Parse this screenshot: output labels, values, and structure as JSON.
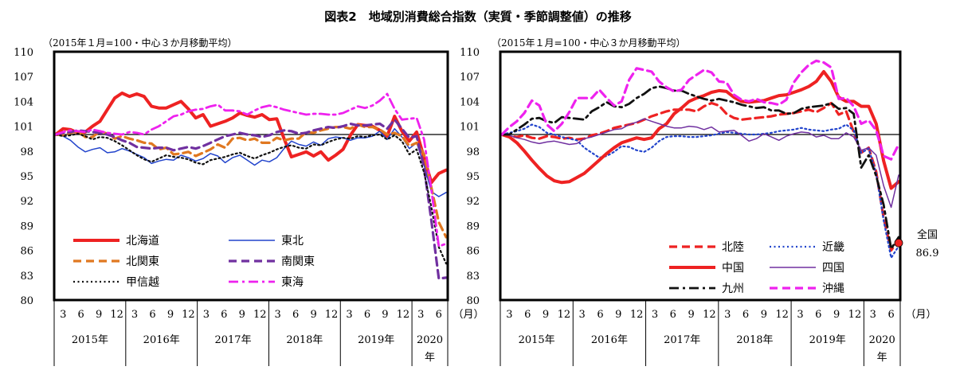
{
  "title": "図表2　地域別消費総合指数（実質・季節調整値）の推移",
  "chart_data": [
    {
      "type": "line",
      "unit_note": "（2015年１月=100・中心３か月移動平均）",
      "ylim": [
        80,
        110
      ],
      "yticks": [
        "110",
        "107",
        "104",
        "101",
        "98",
        "95",
        "92",
        "89",
        "86",
        "83",
        "80"
      ],
      "month_ticks": [
        "3",
        "6",
        "9",
        "12",
        "3",
        "6",
        "9",
        "12",
        "3",
        "6",
        "9",
        "12",
        "3",
        "6",
        "9",
        "12",
        "3",
        "6",
        "9",
        "12",
        "3",
        "6"
      ],
      "year_labels": [
        "2015年",
        "2016年",
        "2017年",
        "2018年",
        "2019年",
        "2020年"
      ],
      "x_unit": "（月）",
      "reference_line": 100,
      "legend_placement": "bottom-left",
      "series": [
        {
          "name": "北海道",
          "color": "#ee2222",
          "style": "solid-thick",
          "values": [
            100,
            100.7,
            100.6,
            100.2,
            100.3,
            101,
            101.6,
            103,
            104.4,
            105,
            104.6,
            104.9,
            104.6,
            103.4,
            103.2,
            103.2,
            103.6,
            104,
            103.1,
            102,
            102.4,
            101,
            101.3,
            101.6,
            102,
            102.6,
            102.3,
            102.1,
            102.4,
            101.8,
            101.9,
            99.5,
            97.3,
            97.6,
            97.9,
            97.4,
            97.9,
            96.9,
            97.5,
            98.2,
            99.9,
            101.2,
            101.1,
            101,
            100.5,
            99.8,
            102.2,
            100.4,
            99.2,
            100.3,
            97.2,
            94.2,
            95.3,
            95.7
          ]
        },
        {
          "name": "東北",
          "color": "#2244cc",
          "style": "solid-thin",
          "values": [
            100,
            99.8,
            99.3,
            98.5,
            97.9,
            98.2,
            98.4,
            97.8,
            97.9,
            98.3,
            98,
            97.6,
            97.2,
            96.5,
            96.8,
            97,
            96.9,
            97.5,
            97.2,
            96.8,
            97.1,
            97.7,
            97.4,
            96.6,
            97.2,
            97.5,
            96.9,
            96.3,
            96.9,
            96.7,
            97.2,
            98.3,
            99.2,
            98.8,
            98.6,
            99.1,
            98.7,
            99.5,
            99.7,
            99.6,
            99.3,
            99.6,
            99.6,
            99.8,
            100.4,
            99.4,
            100.7,
            99.7,
            98.3,
            99,
            96.3,
            93.1,
            92.5,
            93
          ]
        },
        {
          "name": "北関東",
          "color": "#e07820",
          "style": "dash-thick",
          "values": [
            100,
            99.9,
            100.2,
            100.4,
            99.7,
            99.7,
            100.4,
            100.1,
            99.5,
            99.8,
            99.5,
            99.3,
            99,
            98.9,
            98.2,
            98.4,
            97.6,
            97.7,
            97.9,
            97.4,
            97.8,
            98.2,
            98.8,
            98.4,
            99.5,
            99.6,
            99.3,
            99.5,
            99,
            99,
            99.6,
            99.3,
            99.5,
            99.5,
            100.3,
            100.2,
            100.5,
            100.7,
            100.9,
            100.9,
            100.7,
            101.2,
            100.9,
            100.9,
            100.6,
            100,
            100.2,
            99.8,
            98.6,
            99,
            97.6,
            93.6,
            89.4,
            87.6
          ]
        },
        {
          "name": "南関東",
          "color": "#7030a0",
          "style": "dash-thick",
          "values": [
            100,
            100.2,
            100.3,
            100.5,
            100.4,
            100.3,
            100.2,
            100,
            99.7,
            99.3,
            99,
            98.5,
            98.4,
            98.3,
            98.4,
            98.4,
            98.1,
            98.3,
            98.5,
            98.3,
            98.6,
            99,
            99.4,
            99.8,
            100,
            100.2,
            100,
            99.9,
            99.7,
            99.9,
            100.3,
            100.5,
            100.4,
            100.1,
            100.2,
            100.5,
            100.7,
            100.9,
            100.8,
            101,
            101.3,
            101.1,
            101.1,
            101.2,
            101.3,
            100.7,
            101.8,
            100.7,
            99.6,
            99.8,
            96,
            89.6,
            82.6,
            82.7
          ]
        },
        {
          "name": "甲信越",
          "color": "#111111",
          "style": "dot",
          "values": [
            100,
            99.8,
            99.9,
            100.1,
            99.8,
            99.4,
            99.7,
            99.6,
            99.2,
            98.7,
            98.1,
            97.5,
            97,
            96.7,
            97.1,
            97.5,
            97.3,
            97.2,
            97,
            96.6,
            96.4,
            96.9,
            97.1,
            97.3,
            97.6,
            97.8,
            97.4,
            97.1,
            97.5,
            97.8,
            98.2,
            98.5,
            98.7,
            98.4,
            98.3,
            98.8,
            98.7,
            99.1,
            99.4,
            99.6,
            99.5,
            99.8,
            99.7,
            99.9,
            100,
            99.4,
            99.9,
            99.2,
            97.6,
            98.2,
            95.4,
            91.2,
            86.4,
            84.4
          ]
        },
        {
          "name": "東海",
          "color": "#ee22ee",
          "style": "dashdot",
          "values": [
            100,
            100.3,
            100.5,
            100.4,
            100.3,
            100.6,
            100.4,
            100.2,
            100.1,
            100,
            100.3,
            100.2,
            100,
            100.6,
            101,
            101.6,
            102.2,
            102.4,
            102.8,
            103,
            103.1,
            103.4,
            103.6,
            102.9,
            102.9,
            102.8,
            102.4,
            102.9,
            103.3,
            103.5,
            103.3,
            103,
            102.8,
            102.6,
            102.4,
            102.5,
            102.5,
            102.4,
            102.4,
            102.6,
            103,
            103.4,
            103.2,
            103.5,
            104.1,
            104.9,
            103.1,
            101.8,
            101.9,
            102,
            99.4,
            93.3,
            86.5,
            86.8
          ]
        }
      ]
    },
    {
      "type": "line",
      "unit_note": "（2015年１月=100・中心３か月移動平均）",
      "ylim": [
        80,
        110
      ],
      "yticks": [
        "110",
        "107",
        "104",
        "101",
        "98",
        "95",
        "92",
        "89",
        "86",
        "83",
        "80"
      ],
      "month_ticks": [
        "3",
        "6",
        "9",
        "12",
        "3",
        "6",
        "9",
        "12",
        "3",
        "6",
        "9",
        "12",
        "3",
        "6",
        "9",
        "12",
        "3",
        "6",
        "9",
        "12",
        "3",
        "6"
      ],
      "year_labels": [
        "2015年",
        "2016年",
        "2017年",
        "2018年",
        "2019年",
        "2020年"
      ],
      "x_unit": "（月）",
      "reference_line": 100,
      "legend_placement": "bottom-right",
      "national_label": "全国",
      "national_value": "86.9",
      "national_color": "#ee2222",
      "series": [
        {
          "name": "北陸",
          "color": "#ee2222",
          "style": "dash-thick",
          "values": [
            100,
            99.8,
            99.7,
            99.9,
            99.6,
            99.5,
            99.8,
            99.7,
            99.5,
            99.6,
            99.4,
            99.5,
            99.9,
            100.1,
            100.4,
            100.8,
            101,
            101.2,
            101.4,
            101.8,
            102.2,
            102.5,
            102.8,
            103,
            103,
            103,
            102.8,
            103.4,
            103.8,
            103.5,
            102.5,
            102,
            101.8,
            101.9,
            102,
            102.1,
            102.2,
            102.4,
            102.5,
            102.6,
            102.8,
            103,
            102.7,
            103.2,
            103.8,
            102.4,
            102.8,
            100.3,
            97.8,
            98.4,
            95.5,
            89.9,
            86,
            87.3
          ]
        },
        {
          "name": "近畿",
          "color": "#2244cc",
          "style": "dot",
          "values": [
            100,
            100.2,
            100.4,
            100.7,
            101.2,
            100.9,
            100.2,
            100,
            99.7,
            99.5,
            99.3,
            98.4,
            97.8,
            97.2,
            97.4,
            97.9,
            98.6,
            98.5,
            98.1,
            97.9,
            98.4,
            99.2,
            99.7,
            99.8,
            99.8,
            99.7,
            99.7,
            99.8,
            99.9,
            100.1,
            100.3,
            100.2,
            100.1,
            100,
            100,
            100.1,
            100.2,
            100.4,
            100.5,
            100.6,
            100.8,
            100.6,
            100.5,
            100.4,
            100.6,
            100.7,
            101.2,
            100.5,
            97.8,
            98.3,
            95.3,
            89.6,
            85.1,
            86.5
          ]
        },
        {
          "name": "中国",
          "color": "#ee2222",
          "style": "solid-thick",
          "values": [
            100,
            99.7,
            99,
            98,
            96.9,
            95.9,
            95,
            94.4,
            94.2,
            94.3,
            94.8,
            95.3,
            96.1,
            96.9,
            97.7,
            98.4,
            99,
            99.3,
            99.6,
            99.4,
            99.6,
            100.7,
            101.3,
            102.5,
            103.2,
            104,
            104.4,
            104.7,
            105.1,
            105.3,
            105.2,
            104.5,
            104,
            103.9,
            104,
            104.1,
            104.4,
            104.7,
            104.8,
            105.1,
            105.4,
            105.8,
            106.4,
            107.6,
            106.4,
            104.5,
            104,
            104,
            103.4,
            103.4,
            101.3,
            96.8,
            93.5,
            94.3
          ]
        },
        {
          "name": "四国",
          "color": "#7030a0",
          "style": "solid-thin",
          "values": [
            100,
            99.9,
            99.6,
            99.4,
            99.1,
            98.9,
            99.1,
            99.2,
            99,
            98.8,
            98.9,
            99.5,
            99.7,
            100,
            100.3,
            100.6,
            100.7,
            101.2,
            101.5,
            101.9,
            101.6,
            101.3,
            101,
            100.8,
            100.8,
            101,
            100.9,
            100.6,
            100.9,
            100.3,
            100.4,
            100.5,
            99.9,
            99.2,
            99.5,
            100.1,
            99.7,
            99.3,
            99.8,
            100.1,
            100.3,
            100.2,
            99.7,
            99.9,
            99.5,
            99.5,
            100.2,
            99.7,
            98.1,
            98.4,
            97.5,
            93.8,
            91.2,
            95.1
          ]
        },
        {
          "name": "九州",
          "color": "#111111",
          "style": "dashdot",
          "values": [
            100,
            100,
            100.6,
            101.2,
            101.9,
            102,
            101.6,
            101.4,
            102.1,
            102,
            101.9,
            101.8,
            102.8,
            103.3,
            103.9,
            103.4,
            103.3,
            103.7,
            104.4,
            104.9,
            105.6,
            105.8,
            105.6,
            105.3,
            105.3,
            104.9,
            104.6,
            104.3,
            104.1,
            104.3,
            104.1,
            103.9,
            103.6,
            103.4,
            103.2,
            103.3,
            102.9,
            102.9,
            102.5,
            102.6,
            103.1,
            103.3,
            103.4,
            103.5,
            103.8,
            103.1,
            103.2,
            102.5,
            96,
            97.5,
            95,
            91.5,
            86.2,
            87.6
          ]
        },
        {
          "name": "沖縄",
          "color": "#ee22ee",
          "style": "dash-thick",
          "values": [
            100,
            100.9,
            101.6,
            102.6,
            104.1,
            103.5,
            101.2,
            100.4,
            101.3,
            102.7,
            104.4,
            104.4,
            104.4,
            105.4,
            104.4,
            103.5,
            104,
            106.6,
            108,
            107.8,
            107.6,
            106.4,
            105.7,
            105.2,
            105.4,
            106.6,
            107.2,
            107.8,
            107.5,
            106.4,
            106.3,
            104.8,
            104.2,
            104,
            104.3,
            103.9,
            103.8,
            103.6,
            104.2,
            106.3,
            107.5,
            108.4,
            108.9,
            108.7,
            108.1,
            104.3,
            104.4,
            103.4,
            101.3,
            101.7,
            100.5,
            97.4,
            97,
            98.8
          ]
        }
      ]
    }
  ]
}
